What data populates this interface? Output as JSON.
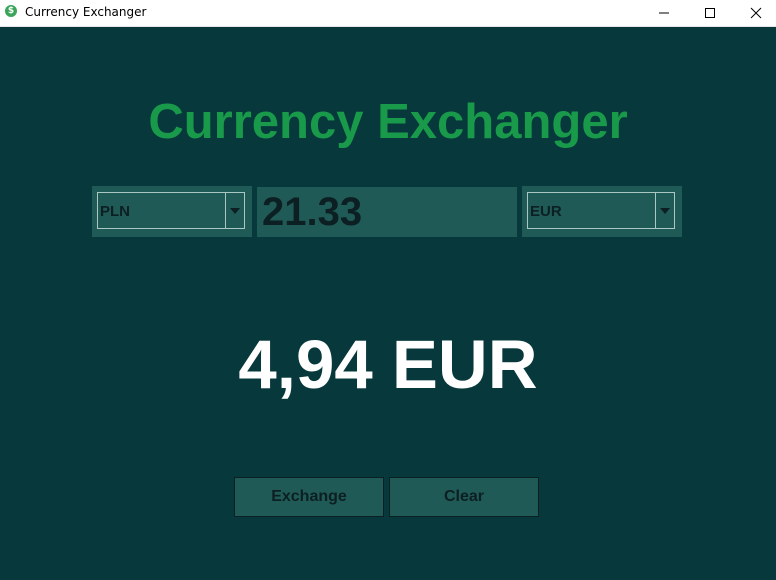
{
  "window": {
    "title": "Currency Exchanger",
    "icon": "dollar-icon",
    "controls": [
      "minimize-icon",
      "maximize-icon",
      "close-icon"
    ]
  },
  "header": {
    "title": "Currency Exchanger",
    "color": "#199a4a"
  },
  "form": {
    "from_currency": "PLN",
    "amount": "21.33",
    "to_currency": "EUR"
  },
  "result": {
    "text": "4,94 EUR"
  },
  "buttons": {
    "exchange_label": "Exchange",
    "clear_label": "Clear"
  },
  "colors": {
    "background": "#07383b",
    "panel": "#1f5a56",
    "dark_text": "#0c1f22",
    "result_text": "#ffffff"
  }
}
